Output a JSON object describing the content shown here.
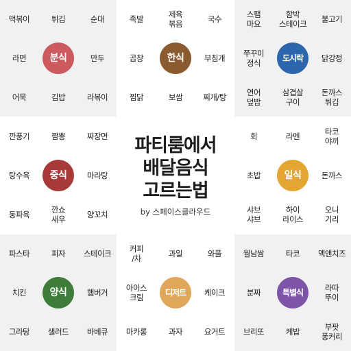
{
  "title": {
    "line1": "파티룸에서",
    "line2": "배달음식",
    "line3": "고르는법"
  },
  "subtitle": "by 스페이스클라우드",
  "categories": [
    {
      "name": "분식",
      "color": "#cc5a5f",
      "items": [
        "떡볶이",
        "튀김",
        "순대",
        "라면",
        "만두",
        "어묵",
        "김밥",
        "라볶이"
      ]
    },
    {
      "name": "한식",
      "color": "#8b5a2e",
      "items": [
        "족발",
        "제육\n볶음",
        "국수",
        "곱창",
        "부침개",
        "찜닭",
        "보쌈",
        "찌개/탕"
      ]
    },
    {
      "name": "도시락",
      "color": "#2c66ad",
      "items": [
        "스팸\n마요",
        "함박\n스테이크",
        "불고기",
        "쭈꾸미\n정식",
        "닭강정",
        "연어\n덮밥",
        "삼겹살\n구이",
        "돈까스\n튀김"
      ]
    },
    {
      "name": "중식",
      "color": "#a83a3a",
      "items": [
        "깐풍기",
        "짬뽕",
        "짜장면",
        "탕수육",
        "마라탕",
        "동파육",
        "깐쇼\n새우",
        "양꼬치"
      ]
    },
    {
      "name": "일식",
      "color": "#e5a531",
      "items": [
        "회",
        "라멘",
        "타코\n야끼",
        "초밥",
        "돈까스",
        "샤브\n샤브",
        "하이\n라이스",
        "오니\n기리"
      ]
    },
    {
      "name": "양식",
      "color": "#3e7d3a",
      "items": [
        "파스타",
        "피자",
        "스테이크",
        "치킨",
        "햄버거",
        "그라탕",
        "샐러드",
        "바베큐"
      ]
    },
    {
      "name": "디저트",
      "color": "#e0a75a",
      "items": [
        "커피\n/차",
        "과일",
        "와플",
        "아이스\n크림",
        "케이크",
        "마카롱",
        "과자",
        "요거트"
      ]
    },
    {
      "name": "특별식",
      "color": "#7d54a8",
      "items": [
        "월남쌈",
        "타코",
        "맥앤치즈",
        "분짜",
        "라따\n뚜이",
        "브리또",
        "케밥",
        "부팟\n퐁커리"
      ]
    }
  ]
}
